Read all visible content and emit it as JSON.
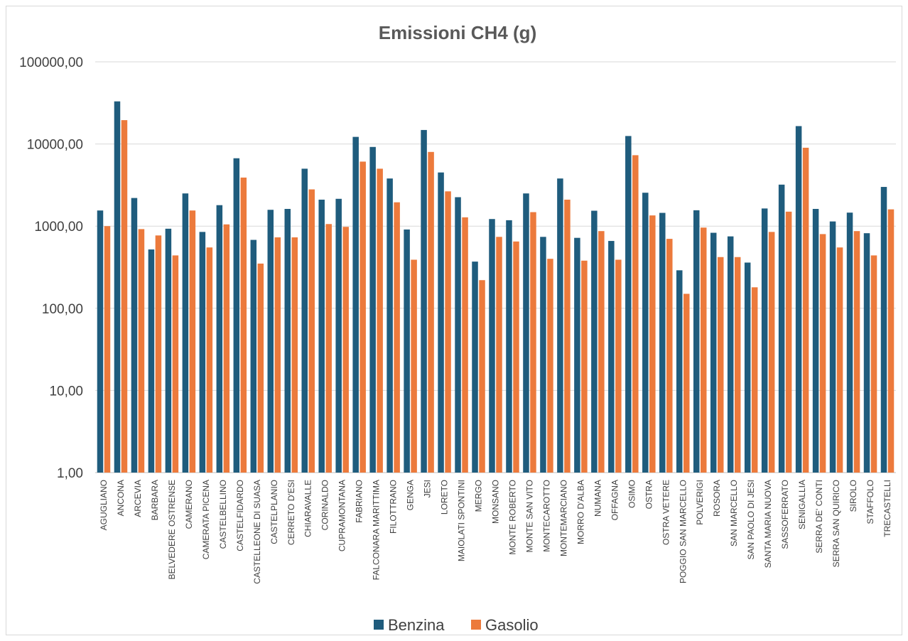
{
  "chart_data": {
    "type": "bar",
    "title": "Emissioni CH4 (g)",
    "y_scale": "log",
    "ylim": [
      1,
      100000
    ],
    "y_ticks": [
      1,
      10,
      100,
      1000,
      10000,
      100000
    ],
    "y_tick_labels": [
      "1,00",
      "10,00",
      "100,00",
      "1000,00",
      "10000,00",
      "100000,00"
    ],
    "grid": true,
    "legend_position": "bottom",
    "categories": [
      "AGUGLIANO",
      "ANCONA",
      "ARCEVIA",
      "BARBARA",
      "BELVEDERE OSTRENSE",
      "CAMERANO",
      "CAMERATA PICENA",
      "CASTELBELLINO",
      "CASTELFIDARDO",
      "CASTELLEONE DI SUASA",
      "CASTELPLANIO",
      "CERRETO D'ESI",
      "CHIARAVALLE",
      "CORINALDO",
      "CUPRAMONTANA",
      "FABRIANO",
      "FALCONARA MARITTIMA",
      "FILOTTRANO",
      "GENGA",
      "JESI",
      "LORETO",
      "MAIOLATI SPONTINI",
      "MERGO",
      "MONSANO",
      "MONTE ROBERTO",
      "MONTE SAN VITO",
      "MONTECAROTTO",
      "MONTEMARCIANO",
      "MORRO D'ALBA",
      "NUMANA",
      "OFFAGNA",
      "OSIMO",
      "OSTRA",
      "OSTRA VETERE",
      "POGGIO SAN MARCELLO",
      "POLVERIGI",
      "ROSORA",
      "SAN MARCELLO",
      "SAN PAOLO DI JESI",
      "SANTA MARIA NUOVA",
      "SASSOFERRATO",
      "SENIGALLIA",
      "SERRA DE' CONTI",
      "SERRA SAN QUIRICO",
      "SIROLO",
      "STAFFOLO",
      "TRECASTELLI"
    ],
    "series": [
      {
        "name": "Benzina",
        "color": "#1f5c7d",
        "values": [
          1550,
          33000,
          2200,
          520,
          930,
          2500,
          850,
          1800,
          6700,
          680,
          1580,
          1620,
          5000,
          2100,
          2150,
          12200,
          9200,
          3800,
          910,
          14800,
          4500,
          2250,
          370,
          1220,
          1180,
          2500,
          740,
          3800,
          720,
          1540,
          660,
          12500,
          2550,
          1450,
          290,
          1560,
          830,
          750,
          360,
          1640,
          3200,
          16500,
          1620,
          1140,
          1460,
          820,
          3000
        ]
      },
      {
        "name": "Gasolio",
        "color": "#ec7a3c",
        "values": [
          1000,
          19500,
          920,
          770,
          440,
          1550,
          550,
          1050,
          3900,
          350,
          730,
          730,
          2800,
          1060,
          980,
          6100,
          5000,
          1950,
          390,
          8000,
          2650,
          1280,
          220,
          740,
          650,
          1480,
          400,
          2100,
          380,
          870,
          390,
          7300,
          1350,
          700,
          150,
          960,
          420,
          420,
          180,
          850,
          1500,
          9000,
          800,
          550,
          870,
          440,
          1600
        ]
      }
    ]
  }
}
